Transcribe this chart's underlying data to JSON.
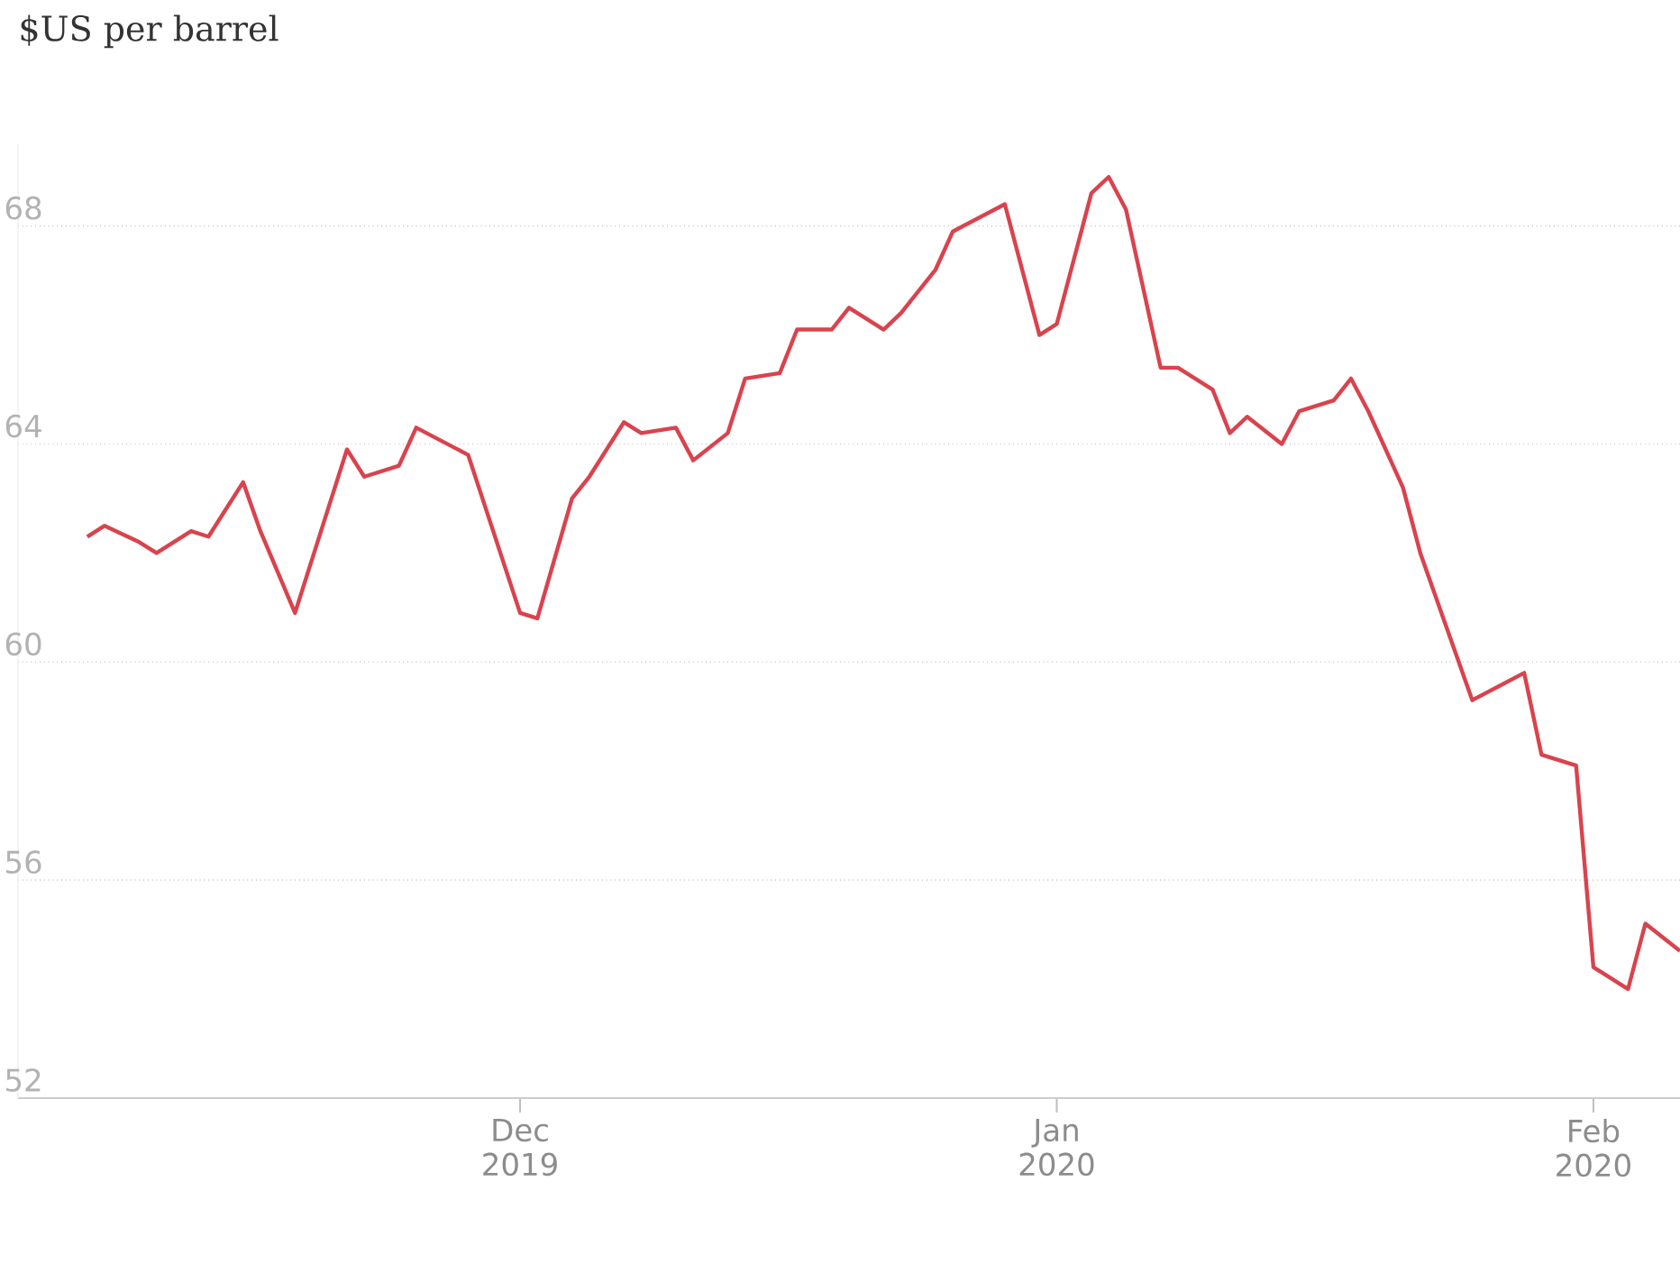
{
  "chart_data": {
    "type": "line",
    "ylabel": "$US per barrel",
    "x": [
      "2019-11-06",
      "2019-11-07",
      "2019-11-09",
      "2019-11-10",
      "2019-11-12",
      "2019-11-13",
      "2019-11-15",
      "2019-11-16",
      "2019-11-18",
      "2019-11-21",
      "2019-11-22",
      "2019-11-24",
      "2019-11-25",
      "2019-11-28",
      "2019-12-01",
      "2019-12-02",
      "2019-12-04",
      "2019-12-05",
      "2019-12-07",
      "2019-12-08",
      "2019-12-10",
      "2019-12-11",
      "2019-12-13",
      "2019-12-14",
      "2019-12-16",
      "2019-12-17",
      "2019-12-19",
      "2019-12-20",
      "2019-12-22",
      "2019-12-23",
      "2019-12-25",
      "2019-12-26",
      "2019-12-29",
      "2019-12-31",
      "2020-01-01",
      "2020-01-03",
      "2020-01-04",
      "2020-01-05",
      "2020-01-07",
      "2020-01-08",
      "2020-01-10",
      "2020-01-11",
      "2020-01-12",
      "2020-01-14",
      "2020-01-15",
      "2020-01-17",
      "2020-01-18",
      "2020-01-19",
      "2020-01-21",
      "2020-01-22",
      "2020-01-25",
      "2020-01-28",
      "2020-01-29",
      "2020-01-31",
      "2020-02-01",
      "2020-02-03",
      "2020-02-04",
      "2020-02-06"
    ],
    "series": [
      {
        "color": "#d9434e",
        "values": [
          62.3,
          62.5,
          62.2,
          62.0,
          62.4,
          62.3,
          63.3,
          62.4,
          60.9,
          63.9,
          63.4,
          63.6,
          64.3,
          63.8,
          60.9,
          60.8,
          63.0,
          63.4,
          64.4,
          64.2,
          64.3,
          63.7,
          64.2,
          65.2,
          65.3,
          66.1,
          66.1,
          66.5,
          66.1,
          66.4,
          67.2,
          67.9,
          68.4,
          66.0,
          66.2,
          68.6,
          68.9,
          68.3,
          65.4,
          65.4,
          65.0,
          64.2,
          64.5,
          64.0,
          64.6,
          64.8,
          65.2,
          64.6,
          63.2,
          62.0,
          59.3,
          59.8,
          58.3,
          58.1,
          54.4,
          54.0,
          55.2,
          54.7
        ]
      }
    ],
    "xlim": [
      "2019-11-02",
      "2020-02-06"
    ],
    "xticks": [
      {
        "value": "2019-12-01",
        "label": "Dec 2019"
      },
      {
        "value": "2020-01-01",
        "label": "Jan 2020"
      },
      {
        "value": "2020-02-01",
        "label": "Feb 2020"
      }
    ],
    "ylim": [
      52,
      69.5
    ],
    "yticks": [
      52,
      56,
      60,
      64,
      68
    ],
    "grid": "y"
  }
}
